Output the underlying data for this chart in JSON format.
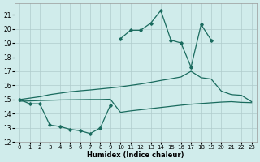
{
  "color": "#1a6b5e",
  "bg_color": "#d0eceb",
  "grid_color": "#b0cccc",
  "xlabel": "Humidex (Indice chaleur)",
  "xlim": [
    -0.5,
    23.5
  ],
  "ylim": [
    12,
    21.8
  ],
  "yticks": [
    12,
    13,
    14,
    15,
    16,
    17,
    18,
    19,
    20,
    21
  ],
  "xticks": [
    0,
    1,
    2,
    3,
    4,
    5,
    6,
    7,
    8,
    9,
    10,
    11,
    12,
    13,
    14,
    15,
    16,
    17,
    18,
    19,
    20,
    21,
    22,
    23
  ],
  "seg1_x": [
    0,
    1,
    2,
    3,
    4,
    5,
    6,
    7,
    8,
    9
  ],
  "seg1_y": [
    15.0,
    14.7,
    14.7,
    13.2,
    13.1,
    12.9,
    12.8,
    12.6,
    13.0,
    14.6
  ],
  "seg2_x": [
    10,
    11,
    12,
    13,
    14,
    15,
    16,
    17,
    18,
    19
  ],
  "seg2_y": [
    19.3,
    19.9,
    19.9,
    20.4,
    21.3,
    19.2,
    19.0,
    17.3,
    20.3,
    19.2
  ],
  "upper_x": [
    0,
    1,
    2,
    3,
    4,
    5,
    6,
    7,
    8,
    9,
    10,
    11,
    12,
    13,
    14,
    15,
    16,
    17,
    18,
    19,
    20,
    21,
    22,
    23
  ],
  "upper_y": [
    15.0,
    15.1,
    15.2,
    15.35,
    15.45,
    15.55,
    15.62,
    15.68,
    15.75,
    15.82,
    15.9,
    16.0,
    16.1,
    16.22,
    16.35,
    16.47,
    16.6,
    17.0,
    16.55,
    16.45,
    15.6,
    15.35,
    15.3,
    14.85
  ],
  "lower_x": [
    0,
    1,
    2,
    3,
    4,
    5,
    6,
    7,
    8,
    9,
    10,
    11,
    12,
    13,
    14,
    15,
    16,
    17,
    18,
    19,
    20,
    21,
    22,
    23
  ],
  "lower_y": [
    14.88,
    14.9,
    14.93,
    14.95,
    14.97,
    14.98,
    14.99,
    15.0,
    15.0,
    15.02,
    14.1,
    14.2,
    14.28,
    14.36,
    14.44,
    14.52,
    14.6,
    14.67,
    14.72,
    14.77,
    14.82,
    14.85,
    14.8,
    14.78
  ]
}
